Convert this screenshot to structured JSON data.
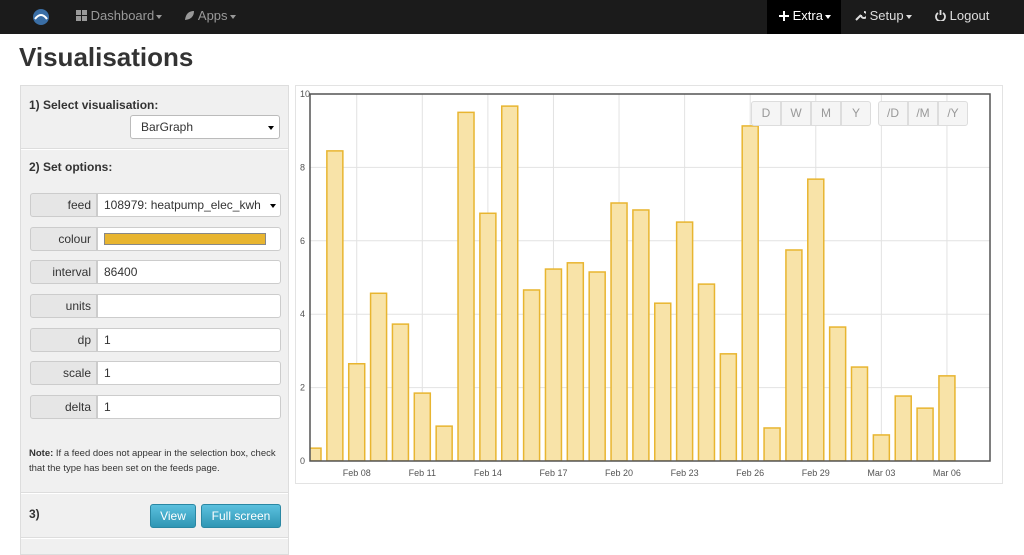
{
  "nav": {
    "items": [
      "Dashboard",
      "Apps",
      "Extra",
      "Setup",
      "Logout"
    ]
  },
  "page_title": "Visualisations",
  "sidebar": {
    "step1": "1) Select visualisation:",
    "select": "BarGraph",
    "step2": "2) Set options:",
    "options": [
      {
        "label": "feed",
        "value": "108979: heatpump_elec_kwh"
      },
      {
        "label": "colour",
        "swatch": "#e8b530"
      },
      {
        "label": "interval",
        "value": "86400"
      },
      {
        "label": "units"
      },
      {
        "label": "dp",
        "value": "1"
      },
      {
        "label": "scale",
        "value": "1"
      },
      {
        "label": "delta",
        "value": "1"
      }
    ],
    "note_bold": "Note:",
    "note": "If a feed does not appear in the selection box, check that the type has been set on the feeds page.",
    "step3": "3)",
    "buttons": [
      "View",
      "Full screen"
    ]
  },
  "chart_data": {
    "type": "bar",
    "categories": [
      null,
      null,
      "Feb 08",
      null,
      null,
      "Feb 11",
      null,
      null,
      "Feb 14",
      null,
      null,
      "Feb 17",
      null,
      null,
      "Feb 20",
      null,
      null,
      "Feb 23",
      null,
      null,
      "Feb 26",
      null,
      null,
      "Feb 29",
      null,
      null,
      "Mar 03",
      null,
      null,
      "Mar 06"
    ],
    "values": [
      0.35,
      8.45,
      2.65,
      4.57,
      3.73,
      1.85,
      0.95,
      9.5,
      6.75,
      9.67,
      4.66,
      5.23,
      5.4,
      5.15,
      7.03,
      6.84,
      4.3,
      6.51,
      4.82,
      2.92,
      9.13,
      0.9,
      5.75,
      7.68,
      3.65,
      2.56,
      0.71,
      1.77,
      1.44,
      2.32
    ],
    "color": "#f8e3a8",
    "edge_color": "#e8b530",
    "ylim": [
      0,
      10
    ],
    "yticks": [
      0,
      2,
      4,
      6,
      8,
      10
    ],
    "grid": true,
    "range_buttons": [
      [
        "D",
        "W",
        "M",
        "Y"
      ],
      [
        "/D",
        "/M",
        "/Y"
      ]
    ]
  }
}
